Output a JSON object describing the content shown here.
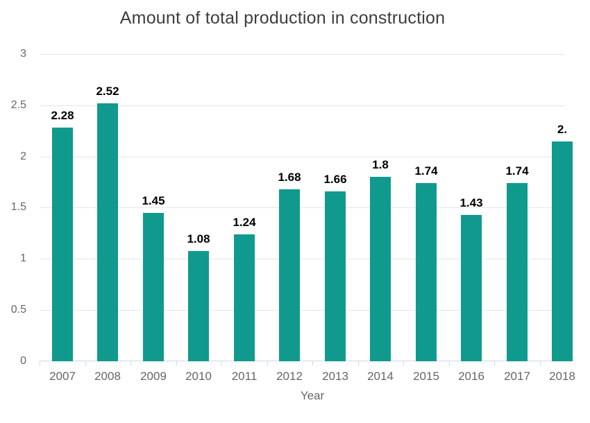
{
  "chart_data": {
    "type": "bar",
    "title": "Amount of total production in construction",
    "xlabel": "Year",
    "ylabel": "",
    "categories": [
      "2007",
      "2008",
      "2009",
      "2010",
      "2011",
      "2012",
      "2013",
      "2014",
      "2015",
      "2016",
      "2017",
      "2018"
    ],
    "values": [
      2.28,
      2.52,
      1.45,
      1.08,
      1.24,
      1.68,
      1.66,
      1.8,
      1.74,
      1.43,
      1.74,
      2.15
    ],
    "value_labels": [
      "2.28",
      "2.52",
      "1.45",
      "1.08",
      "1.24",
      "1.68",
      "1.66",
      "1.8",
      "1.74",
      "1.43",
      "1.74",
      "2."
    ],
    "ylim": [
      0,
      3
    ],
    "yticks": [
      0,
      0.5,
      1,
      1.5,
      2,
      2.5,
      3
    ],
    "ytick_labels": [
      "0",
      "0.5",
      "1",
      "1.5",
      "2",
      "2.5",
      "3"
    ],
    "grid": true,
    "legend": false,
    "last_category_clipped_at_right_edge": true
  },
  "colors": {
    "bar": "#0f9a8d",
    "axis_line": "#ccd6eb",
    "gridline": "#e6e6e6",
    "tick_label": "#666666",
    "title": "#3d3d3d",
    "value_label": "#000000"
  }
}
